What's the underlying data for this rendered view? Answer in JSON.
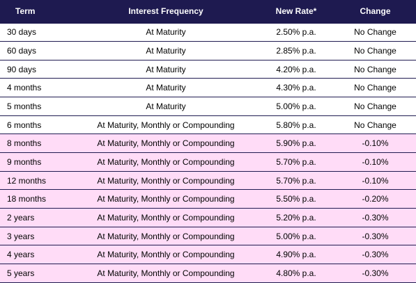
{
  "table": {
    "headers": {
      "term": "Term",
      "frequency": "Interest Frequency",
      "rate": "New Rate*",
      "change": "Change"
    },
    "colors": {
      "header_bg": "#1e1a50",
      "header_text": "#ffffff",
      "changed_row_bg": "#ffdcf7",
      "unchanged_row_bg": "#ffffff"
    },
    "rows": [
      {
        "term": "30 days",
        "frequency": "At Maturity",
        "rate": "2.50% p.a.",
        "change": "No Change"
      },
      {
        "term": "60 days",
        "frequency": "At Maturity",
        "rate": "2.85% p.a.",
        "change": "No Change"
      },
      {
        "term": "90 days",
        "frequency": "At Maturity",
        "rate": "4.20% p.a.",
        "change": "No Change"
      },
      {
        "term": "4 months",
        "frequency": "At Maturity",
        "rate": "4.30% p.a.",
        "change": "No Change"
      },
      {
        "term": "5 months",
        "frequency": "At Maturity",
        "rate": "5.00% p.a.",
        "change": "No Change"
      },
      {
        "term": "6 months",
        "frequency": "At Maturity, Monthly or Compounding",
        "rate": "5.80% p.a.",
        "change": "No Change"
      },
      {
        "term": "8 months",
        "frequency": "At Maturity, Monthly or Compounding",
        "rate": "5.90% p.a.",
        "change": "-0.10%"
      },
      {
        "term": "9 months",
        "frequency": "At Maturity, Monthly or Compounding",
        "rate": "5.70% p.a.",
        "change": "-0.10%"
      },
      {
        "term": "12 months",
        "frequency": "At Maturity, Monthly or Compounding",
        "rate": "5.70% p.a.",
        "change": "-0.10%"
      },
      {
        "term": "18 months",
        "frequency": "At Maturity, Monthly or Compounding",
        "rate": "5.50% p.a.",
        "change": "-0.20%"
      },
      {
        "term": "2 years",
        "frequency": "At Maturity, Monthly or Compounding",
        "rate": "5.20% p.a.",
        "change": "-0.30%"
      },
      {
        "term": "3 years",
        "frequency": "At Maturity, Monthly or Compounding",
        "rate": "5.00% p.a.",
        "change": "-0.30%"
      },
      {
        "term": "4 years",
        "frequency": "At Maturity, Monthly or Compounding",
        "rate": "4.90% p.a.",
        "change": "-0.30%"
      },
      {
        "term": "5 years",
        "frequency": "At Maturity, Monthly or Compounding",
        "rate": "4.80% p.a.",
        "change": "-0.30%"
      }
    ]
  }
}
